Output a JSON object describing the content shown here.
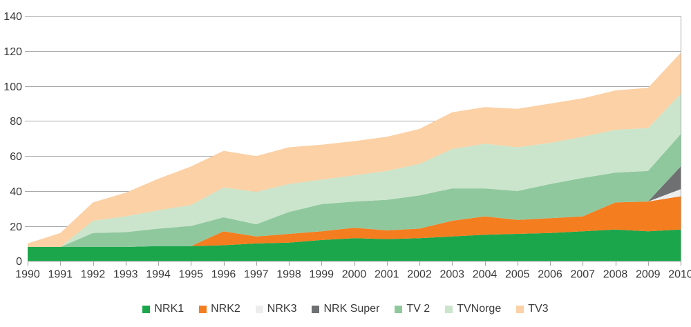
{
  "chart_data": {
    "type": "area",
    "stacked": true,
    "title": "",
    "xlabel": "",
    "ylabel": "",
    "x": [
      1990,
      1991,
      1992,
      1993,
      1994,
      1995,
      1996,
      1997,
      1998,
      1999,
      2000,
      2001,
      2002,
      2003,
      2004,
      2005,
      2006,
      2007,
      2008,
      2009,
      2010
    ],
    "series": [
      {
        "name": "NRK1",
        "color": "#1ba64c",
        "values": [
          8,
          8,
          8,
          8,
          8.5,
          8.5,
          9,
          10,
          10.5,
          12,
          13,
          12.5,
          13,
          14,
          15,
          15.5,
          16,
          17,
          18,
          17,
          18
        ]
      },
      {
        "name": "NRK2",
        "color": "#f47d20",
        "values": [
          0,
          0,
          0,
          0,
          0,
          0,
          8,
          4,
          5,
          5,
          6,
          5,
          5.5,
          9,
          10.5,
          8,
          8.5,
          8.5,
          15.5,
          17,
          19
        ]
      },
      {
        "name": "NRK3",
        "color": "#ededee",
        "values": [
          0,
          0,
          0,
          0,
          0,
          0,
          0,
          0,
          0,
          0,
          0,
          0,
          0,
          0,
          0,
          0,
          0,
          0,
          0,
          0,
          4
        ]
      },
      {
        "name": "NRK Super",
        "color": "#6e7072",
        "values": [
          0,
          0,
          0,
          0,
          0,
          0,
          0,
          0,
          0,
          0,
          0,
          0,
          0,
          0,
          0,
          0,
          0,
          0,
          0,
          0,
          13
        ]
      },
      {
        "name": "TV 2",
        "color": "#90c89e",
        "values": [
          0,
          0,
          8,
          8.5,
          10,
          11.5,
          8,
          7,
          12.5,
          15.5,
          15,
          17.5,
          19,
          18.5,
          16,
          16.5,
          19.5,
          22,
          17,
          17.5,
          18.5
        ]
      },
      {
        "name": "TVNorge",
        "color": "#cbe5cc",
        "values": [
          0,
          0,
          7,
          9,
          10.5,
          12,
          17,
          18.5,
          16,
          14,
          15,
          16.5,
          18,
          22.5,
          25.5,
          25,
          23.5,
          23.5,
          24.5,
          24.5,
          23
        ]
      },
      {
        "name": "TV3",
        "color": "#fbd1a5",
        "values": [
          2,
          8,
          10.5,
          13.5,
          18,
          22,
          21,
          20.5,
          21,
          20,
          19.5,
          19.5,
          20,
          21,
          21,
          22,
          22.5,
          22,
          22.5,
          23,
          23.5
        ]
      }
    ],
    "ylim": [
      0,
      140
    ],
    "yticks": [
      0,
      20,
      40,
      60,
      80,
      100,
      120,
      140
    ],
    "grid": true,
    "legend_position": "bottom"
  },
  "style": {
    "grid_color": "#a6a8ab",
    "axis_color": "#a6a8ab",
    "text_color": "#383838",
    "background": "#ffffff"
  }
}
